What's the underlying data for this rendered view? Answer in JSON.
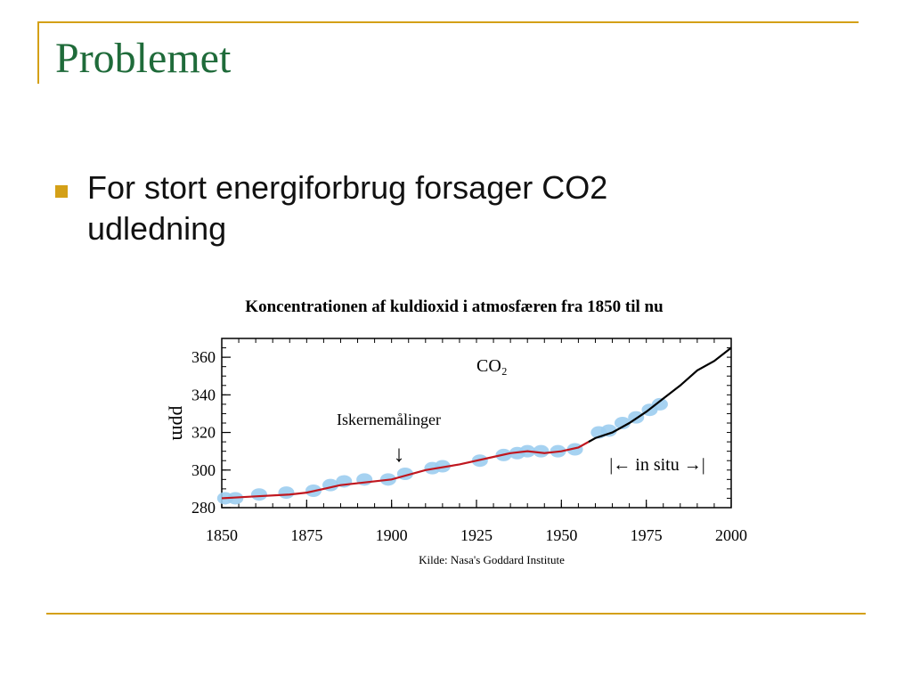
{
  "slide": {
    "title": "Problemet",
    "bullet": "For stort energiforbrug forsager CO2 udledning"
  },
  "colors": {
    "accent": "#d4a017",
    "title": "#1f6b3a",
    "ice_core_markers": "#9ccdf0",
    "ice_core_line": "#c0171f",
    "in_situ_line": "#000000"
  },
  "chart_data": {
    "type": "line",
    "title": "Koncentrationen af kuldioxid i atmosfæren fra 1850 til nu",
    "ylabel": "ppm",
    "xlabel": "",
    "source": "Kilde: Nasa's Goddard Institute",
    "xlim": [
      1850,
      2000
    ],
    "ylim": [
      280,
      370
    ],
    "xticks": [
      1850,
      1875,
      1900,
      1925,
      1950,
      1975,
      2000
    ],
    "yticks": [
      280,
      300,
      320,
      340,
      360
    ],
    "annotations": {
      "species": "CO₂",
      "ice_cores": "Iskernemålinger",
      "arrow": "↓",
      "in_situ": "|← in situ →|"
    },
    "series": [
      {
        "style": "markers",
        "x": [
          1851,
          1854,
          1861,
          1869,
          1877,
          1882,
          1886,
          1892,
          1899,
          1904,
          1912,
          1915,
          1926,
          1933,
          1937,
          1940,
          1944,
          1949,
          1954,
          1961,
          1964,
          1968,
          1972,
          1976,
          1979
        ],
        "y": [
          285,
          285,
          287,
          288,
          289,
          292,
          294,
          295,
          295,
          298,
          301,
          302,
          305,
          308,
          309,
          310,
          310,
          310,
          311,
          320,
          321,
          325,
          328,
          332,
          335
        ]
      },
      {
        "style": "line-red",
        "x": [
          1850,
          1860,
          1870,
          1875,
          1880,
          1885,
          1890,
          1900,
          1910,
          1920,
          1930,
          1935,
          1940,
          1945,
          1950,
          1955,
          1958
        ],
        "y": [
          285,
          286,
          287,
          288,
          290,
          292,
          293,
          295,
          300,
          303,
          307,
          309,
          310,
          309,
          310,
          312,
          315
        ]
      },
      {
        "style": "line-black",
        "x": [
          1958,
          1960,
          1965,
          1970,
          1975,
          1980,
          1985,
          1990,
          1995,
          2000
        ],
        "y": [
          315,
          317,
          320,
          325,
          331,
          338,
          345,
          353,
          358,
          365
        ]
      }
    ]
  }
}
